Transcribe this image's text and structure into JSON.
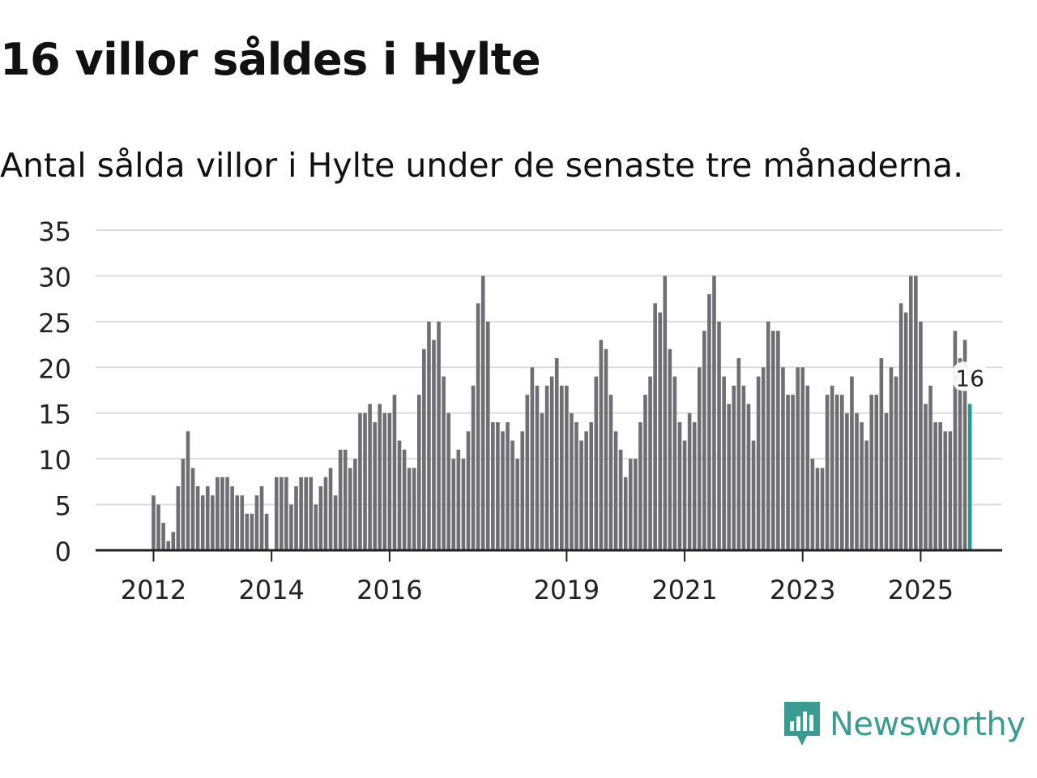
{
  "header": {
    "title": "16 villor såldes i Hylte",
    "subtitle": "Antal sålda villor i Hylte under de senaste tre månaderna."
  },
  "brand": {
    "name": "Newsworthy"
  },
  "colors": {
    "bar": "#6e6e73",
    "highlight": "#1a9e94",
    "grid": "#dddddd",
    "axis": "#222222",
    "text": "#222222"
  },
  "chart_data": {
    "type": "bar",
    "title": "16 villor såldes i Hylte",
    "subtitle": "Antal sålda villor i Hylte under de senaste tre månaderna.",
    "xlabel": "",
    "ylabel": "",
    "ylim": [
      0,
      35
    ],
    "yticks": [
      0,
      5,
      10,
      15,
      20,
      25,
      30,
      35
    ],
    "x_start_month": "2011-10",
    "x_ticks": [
      {
        "label": "2012",
        "month": "2012-01"
      },
      {
        "label": "2014",
        "month": "2014-01"
      },
      {
        "label": "2016",
        "month": "2016-01"
      },
      {
        "label": "2019",
        "month": "2019-01"
      },
      {
        "label": "2021",
        "month": "2021-01"
      },
      {
        "label": "2023",
        "month": "2023-01"
      },
      {
        "label": "2025",
        "month": "2025-01"
      }
    ],
    "values": [
      0,
      0,
      0,
      6,
      5,
      3,
      1,
      2,
      7,
      10,
      13,
      9,
      7,
      6,
      7,
      6,
      8,
      8,
      8,
      7,
      6,
      6,
      4,
      4,
      6,
      7,
      4,
      0,
      8,
      8,
      8,
      5,
      7,
      8,
      8,
      8,
      5,
      7,
      8,
      9,
      6,
      11,
      11,
      9,
      10,
      15,
      15,
      16,
      14,
      16,
      15,
      15,
      17,
      12,
      11,
      9,
      9,
      17,
      22,
      25,
      23,
      25,
      19,
      15,
      10,
      11,
      10,
      13,
      18,
      27,
      30,
      25,
      14,
      14,
      13,
      14,
      12,
      10,
      13,
      17,
      20,
      18,
      15,
      18,
      19,
      21,
      18,
      18,
      15,
      14,
      12,
      13,
      14,
      19,
      23,
      22,
      17,
      13,
      11,
      8,
      10,
      10,
      14,
      17,
      19,
      27,
      26,
      30,
      22,
      19,
      14,
      12,
      15,
      14,
      20,
      24,
      28,
      30,
      25,
      19,
      16,
      18,
      21,
      18,
      16,
      12,
      19,
      20,
      25,
      24,
      24,
      20,
      17,
      17,
      20,
      20,
      18,
      10,
      9,
      9,
      17,
      18,
      17,
      17,
      15,
      19,
      15,
      14,
      12,
      17,
      17,
      21,
      15,
      20,
      19,
      27,
      26,
      30,
      30,
      25,
      16,
      18,
      14,
      14,
      13,
      13,
      24,
      21,
      23,
      16
    ],
    "highlight_last": true,
    "annotation": {
      "label": "16",
      "value": 16
    }
  }
}
